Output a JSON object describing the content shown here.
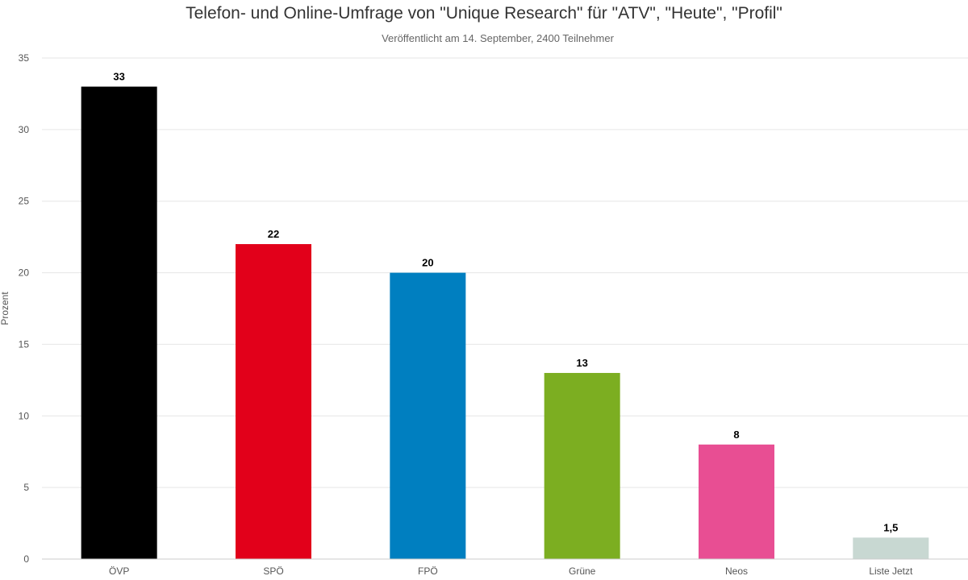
{
  "chart_data": {
    "type": "bar",
    "title": "Telefon- und Online-Umfrage von \"Unique Research\" für \"ATV\", \"Heute\", \"Profil\"",
    "subtitle": "Veröffentlicht am 14. September, 2400 Teilnehmer",
    "xlabel": "",
    "ylabel": "Prozent",
    "ylim": [
      0,
      35
    ],
    "yticks": [
      0,
      5,
      10,
      15,
      20,
      25,
      30,
      35
    ],
    "grid": true,
    "legend": "none",
    "categories": [
      "ÖVP",
      "SPÖ",
      "FPÖ",
      "Grüne",
      "Neos",
      "Liste Jetzt"
    ],
    "values": [
      33,
      22,
      20,
      13,
      8,
      1.5
    ],
    "value_labels": [
      "33",
      "22",
      "20",
      "13",
      "8",
      "1,5"
    ],
    "colors": [
      "#000000",
      "#e2001a",
      "#007fc0",
      "#7cae21",
      "#e84e93",
      "#c8d8d2"
    ]
  }
}
